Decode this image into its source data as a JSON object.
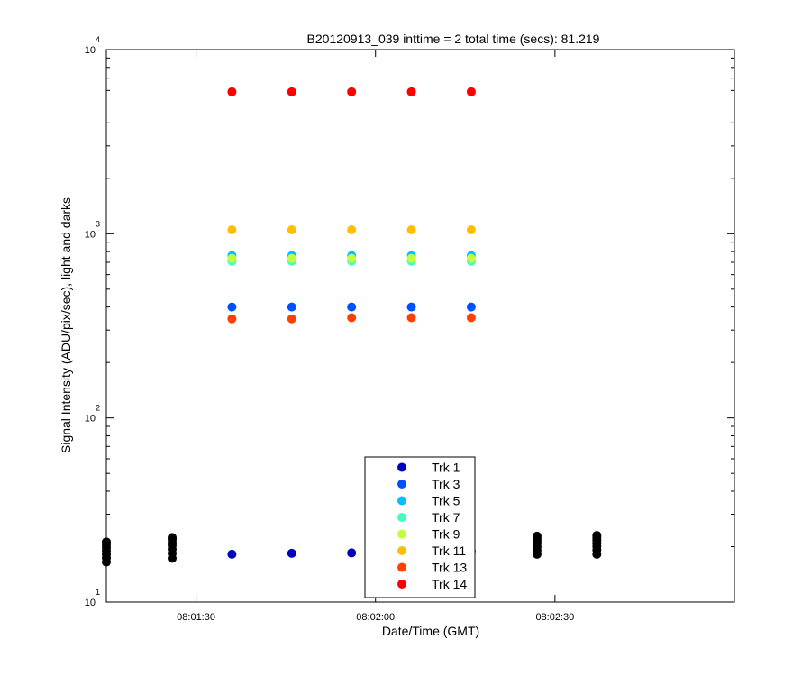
{
  "chart_data": {
    "type": "scatter",
    "title": "B20120913_039 inttime = 2 total time (secs): 81.219",
    "xlabel": "Date/Time (GMT)",
    "ylabel": "Signal Intensity (ADU/pix/sec), light and darks",
    "xlim": [
      "08:01:15",
      "08:03:00"
    ],
    "ylim": [
      10,
      10000
    ],
    "yscale": "log",
    "x_ticks": [
      "08:01:30",
      "08:02:00",
      "08:02:30"
    ],
    "y_ticks": [
      {
        "base": "10",
        "exp": "1",
        "value": 10
      },
      {
        "base": "10",
        "exp": "2",
        "value": 100
      },
      {
        "base": "10",
        "exp": "3",
        "value": 1000
      },
      {
        "base": "10",
        "exp": "4",
        "value": 10000
      }
    ],
    "grid": false,
    "legend_position": "bottom-center",
    "series": [
      {
        "name": "Trk 1",
        "color": "#0000bf",
        "x": [
          "08:01:36",
          "08:01:46",
          "08:01:56",
          "08:02:06",
          "08:02:16"
        ],
        "y": [
          18.2,
          18.4,
          18.5,
          18.7,
          18.9
        ]
      },
      {
        "name": "Trk 3",
        "color": "#0050ff",
        "x": [
          "08:01:36",
          "08:01:46",
          "08:01:56",
          "08:02:06",
          "08:02:16"
        ],
        "y": [
          400,
          400,
          400,
          400,
          400
        ]
      },
      {
        "name": "Trk 5",
        "color": "#00bfff",
        "x": [
          "08:01:36",
          "08:01:46",
          "08:01:56",
          "08:02:06",
          "08:02:16"
        ],
        "y": [
          760,
          760,
          760,
          760,
          760
        ]
      },
      {
        "name": "Trk 7",
        "color": "#40ffbf",
        "x": [
          "08:01:36",
          "08:01:46",
          "08:01:56",
          "08:02:06",
          "08:02:16"
        ],
        "y": [
          710,
          710,
          710,
          710,
          710
        ]
      },
      {
        "name": "Trk 9",
        "color": "#bfff40",
        "x": [
          "08:01:36",
          "08:01:46",
          "08:01:56",
          "08:02:06",
          "08:02:16"
        ],
        "y": [
          735,
          735,
          735,
          735,
          735
        ]
      },
      {
        "name": "Trk 11",
        "color": "#ffbf00",
        "x": [
          "08:01:36",
          "08:01:46",
          "08:01:56",
          "08:02:06",
          "08:02:16"
        ],
        "y": [
          1050,
          1050,
          1050,
          1050,
          1050
        ]
      },
      {
        "name": "Trk 13",
        "color": "#ff4000",
        "x": [
          "08:01:36",
          "08:01:46",
          "08:01:56",
          "08:02:06",
          "08:02:16"
        ],
        "y": [
          345,
          345,
          350,
          350,
          350
        ]
      },
      {
        "name": "Trk 14",
        "color": "#ff0000",
        "x": [
          "08:01:36",
          "08:01:46",
          "08:01:56",
          "08:02:06",
          "08:02:16"
        ],
        "y": [
          5900,
          5900,
          5900,
          5900,
          5900
        ]
      }
    ],
    "dark_points": {
      "color": "#000000",
      "x": [
        "08:01:15",
        "08:01:15",
        "08:01:15",
        "08:01:15",
        "08:01:15",
        "08:01:15",
        "08:01:15",
        "08:01:26",
        "08:01:26",
        "08:01:26",
        "08:01:26",
        "08:01:26",
        "08:01:26",
        "08:01:26",
        "08:02:27",
        "08:02:27",
        "08:02:27",
        "08:02:27",
        "08:02:27",
        "08:02:27",
        "08:02:27",
        "08:02:37",
        "08:02:37",
        "08:02:37",
        "08:02:37",
        "08:02:37",
        "08:02:37",
        "08:02:37"
      ],
      "y": [
        16.5,
        17.4,
        18.2,
        19.0,
        19.8,
        20.5,
        21.2,
        17.3,
        18.4,
        19.4,
        20.3,
        21.0,
        21.8,
        22.4,
        18.2,
        19.1,
        20.0,
        20.8,
        21.5,
        22.2,
        22.8,
        18.2,
        19.2,
        20.1,
        20.9,
        21.7,
        22.4,
        23.0
      ]
    }
  }
}
